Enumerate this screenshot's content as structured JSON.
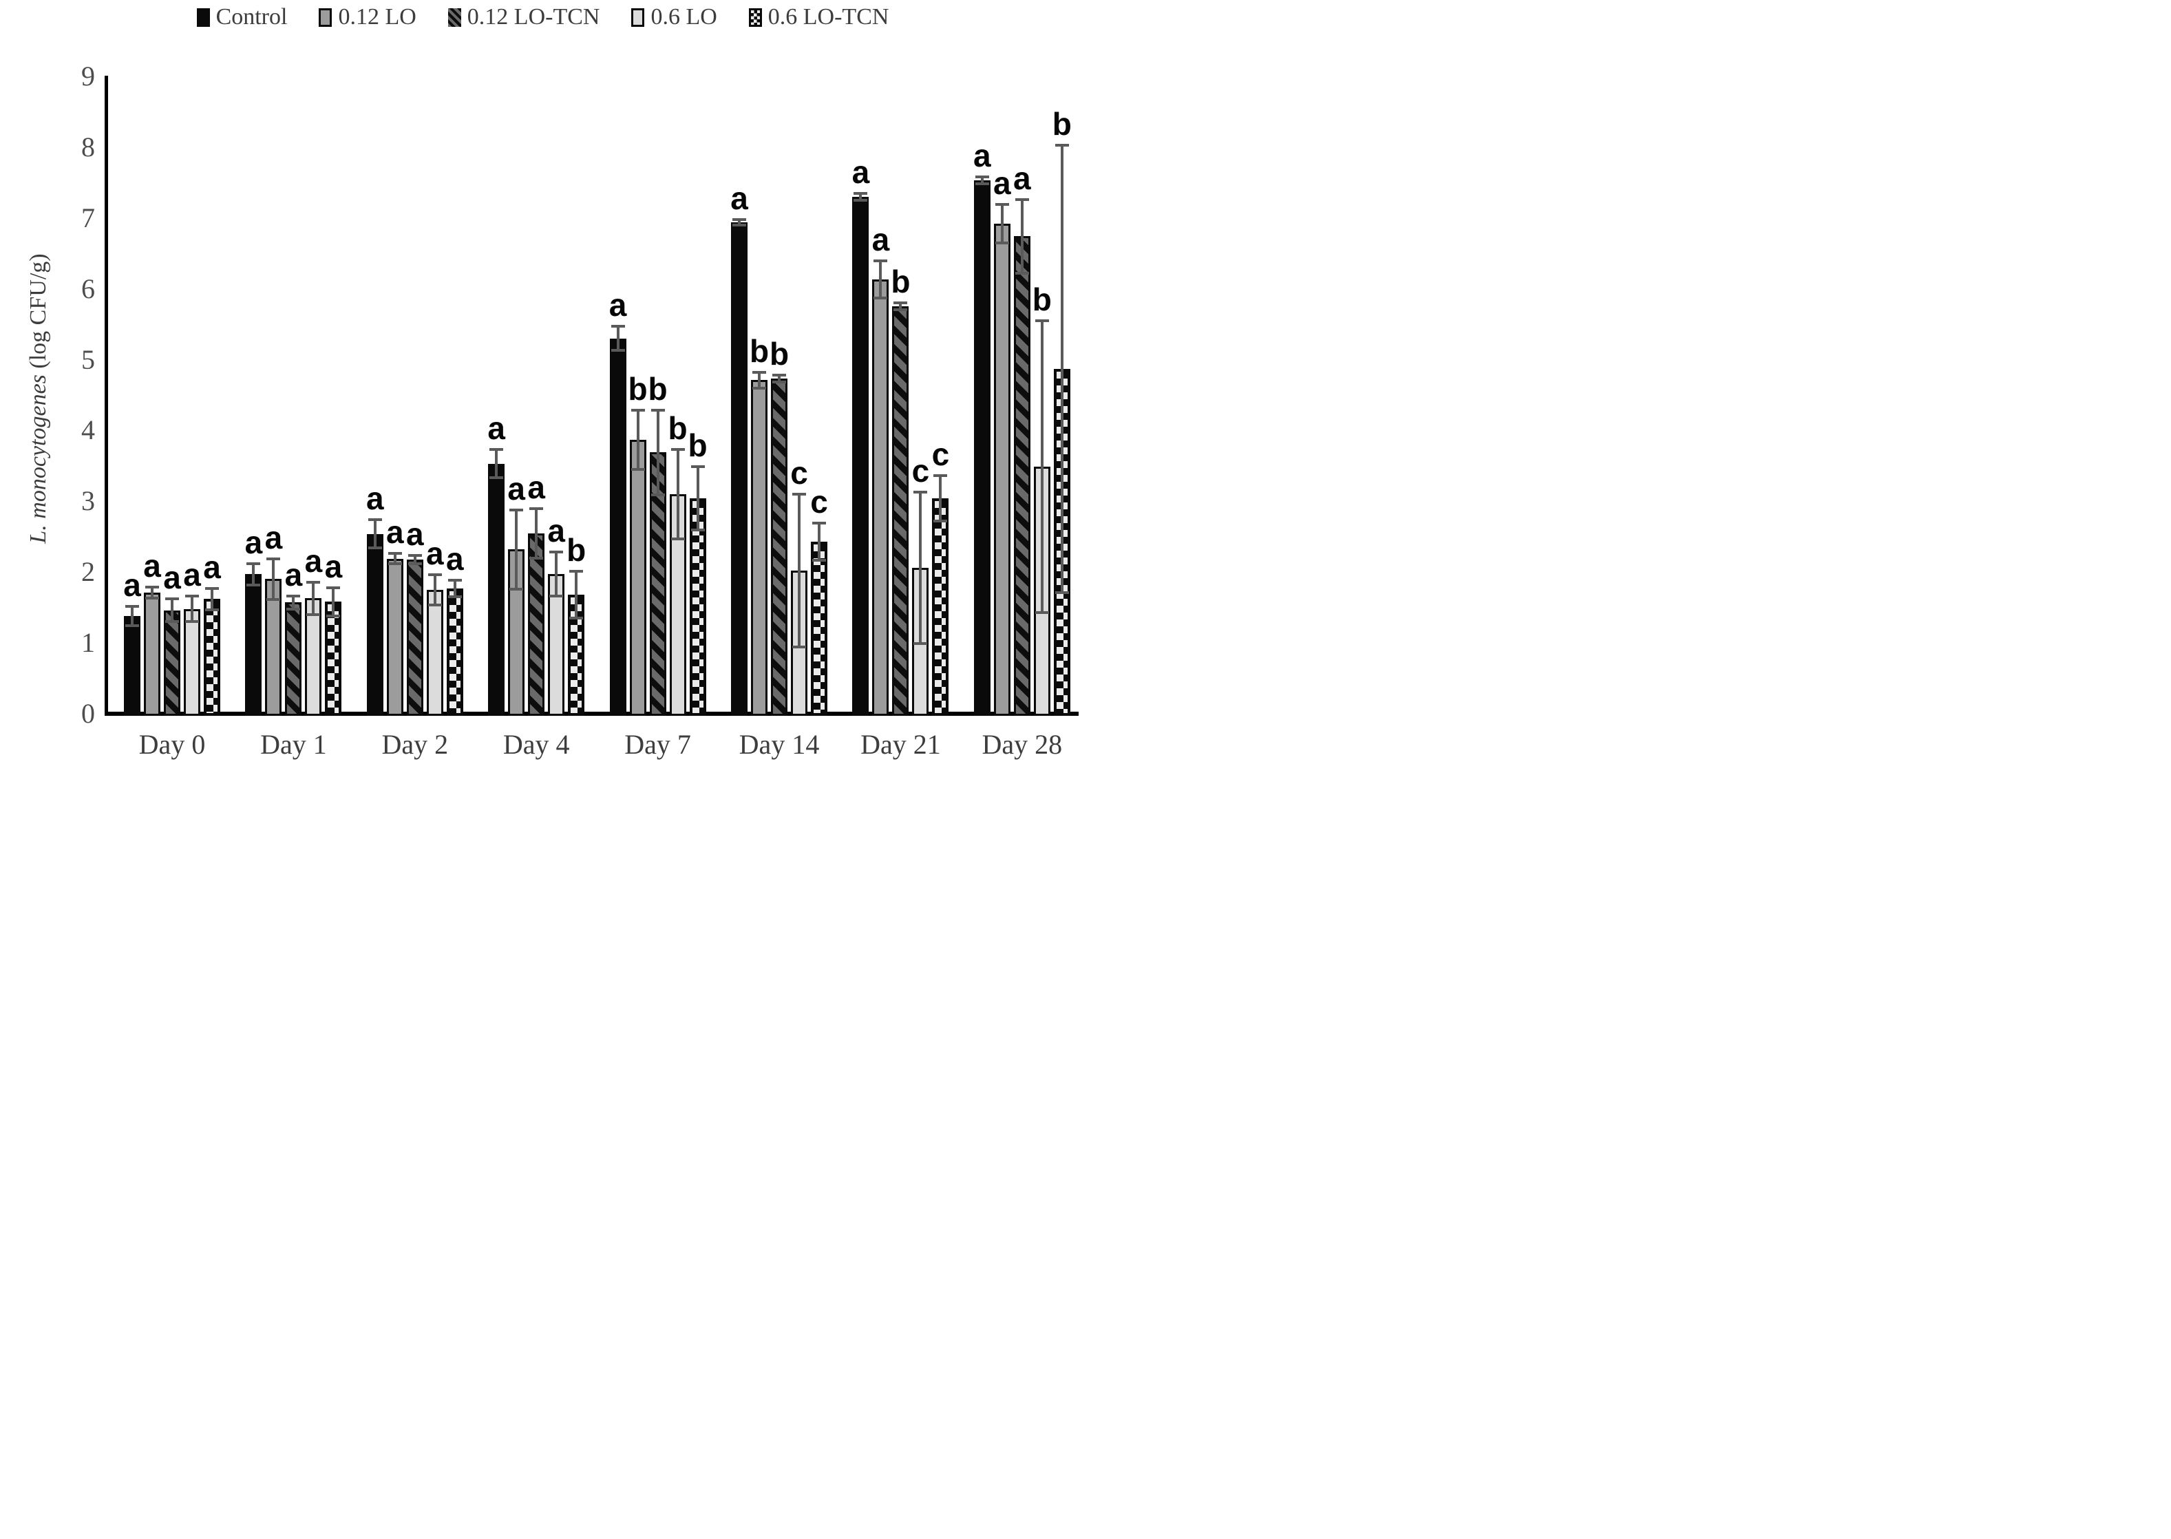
{
  "figure": {
    "ylabel_italic": "L. monocytogenes",
    "ylabel_rest": " (log CFU/g)"
  },
  "chart_data": {
    "type": "bar",
    "title": "",
    "xlabel": "",
    "ylabel": "L. monocytogenes (log CFU/g)",
    "ylim": [
      0,
      9
    ],
    "yticks": [
      0,
      1,
      2,
      3,
      4,
      5,
      6,
      7,
      8,
      9
    ],
    "grid": false,
    "legend_position": "top",
    "error_bars": true,
    "annotation_note": "letters a/b/c above bars denote significance groups",
    "categories": [
      "Day 0",
      "Day 1",
      "Day 2",
      "Day 4",
      "Day 7",
      "Day 14",
      "Day 21",
      "Day 28"
    ],
    "series": [
      {
        "name": "Control",
        "pattern": "solid-black",
        "values": [
          1.38,
          1.97,
          2.54,
          3.53,
          5.3,
          6.94,
          7.3,
          7.53
        ],
        "errors": [
          0.14,
          0.15,
          0.2,
          0.2,
          0.17,
          0.04,
          0.05,
          0.05
        ],
        "letters": [
          "a",
          "a",
          "a",
          "a",
          "a",
          "a",
          "a",
          "a"
        ]
      },
      {
        "name": "0.12 LO",
        "pattern": "gray",
        "values": [
          1.71,
          1.9,
          2.19,
          2.32,
          3.87,
          4.71,
          6.13,
          6.92
        ],
        "errors": [
          0.08,
          0.29,
          0.07,
          0.56,
          0.42,
          0.11,
          0.26,
          0.27
        ],
        "letters": [
          "a",
          "a",
          "a",
          "a",
          "b",
          "b",
          "a",
          "a"
        ]
      },
      {
        "name": "0.12 LO-TCN",
        "pattern": "diagonal-hatch",
        "values": [
          1.46,
          1.57,
          2.18,
          2.55,
          3.69,
          4.73,
          5.75,
          6.74
        ],
        "errors": [
          0.16,
          0.09,
          0.06,
          0.35,
          0.6,
          0.05,
          0.05,
          0.52
        ],
        "letters": [
          "a",
          "a",
          "a",
          "a",
          "b",
          "b",
          "b",
          "a"
        ]
      },
      {
        "name": "0.6 LO",
        "pattern": "light-gray",
        "values": [
          1.48,
          1.63,
          1.75,
          1.97,
          3.1,
          2.02,
          2.06,
          3.49
        ],
        "errors": [
          0.18,
          0.23,
          0.21,
          0.31,
          0.63,
          1.08,
          1.07,
          2.06
        ],
        "letters": [
          "a",
          "a",
          "a",
          "a",
          "b",
          "c",
          "c",
          "b"
        ]
      },
      {
        "name": "0.6 LO-TCN",
        "pattern": "checker",
        "values": [
          1.62,
          1.58,
          1.77,
          1.68,
          3.04,
          2.43,
          3.04,
          4.87
        ],
        "errors": [
          0.15,
          0.2,
          0.12,
          0.33,
          0.45,
          0.26,
          0.32,
          3.16
        ],
        "letters": [
          "a",
          "a",
          "a",
          "b",
          "b",
          "c",
          "c",
          "b"
        ]
      }
    ]
  }
}
